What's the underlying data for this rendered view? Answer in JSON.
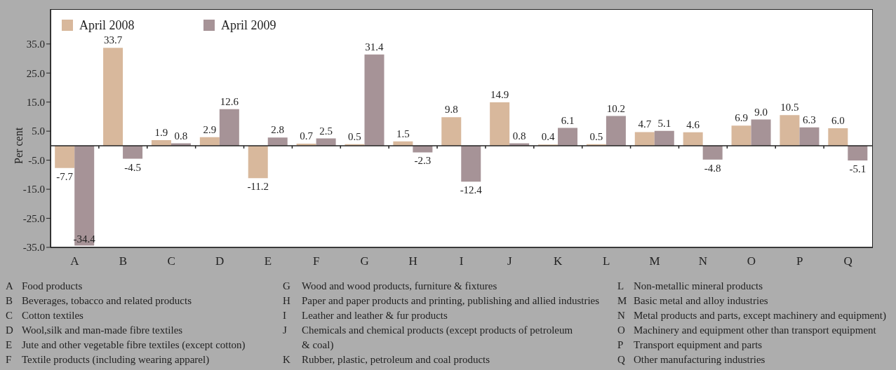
{
  "chart_data": {
    "type": "bar",
    "ylabel": "Per cent",
    "categories": [
      "A",
      "B",
      "C",
      "D",
      "E",
      "F",
      "G",
      "H",
      "I",
      "J",
      "K",
      "L",
      "M",
      "N",
      "O",
      "P",
      "Q"
    ],
    "series": [
      {
        "name": "April 2008",
        "color": "#d8b89c",
        "values": [
          -7.7,
          33.7,
          1.9,
          2.9,
          -11.2,
          0.7,
          0.5,
          1.5,
          9.8,
          14.9,
          0.4,
          0.5,
          4.7,
          4.6,
          6.9,
          10.5,
          6.0
        ],
        "value_labels": [
          "-7.7",
          "33.7",
          "1.9",
          "2.9",
          "-11.2",
          "0.7",
          "0.5",
          "1.5",
          "9.8",
          "14.9",
          "0.4",
          "0.5",
          "4.7",
          "4.6",
          "6.9",
          "10.5",
          "6.0"
        ]
      },
      {
        "name": "April 2009",
        "color": "#a69397",
        "values": [
          -34.4,
          -4.5,
          0.8,
          12.6,
          2.8,
          2.5,
          31.4,
          -2.3,
          -12.4,
          0.8,
          6.1,
          10.2,
          5.1,
          -4.8,
          9.0,
          6.3,
          -5.1
        ],
        "value_labels": [
          "-34.4",
          "-4.5",
          "0.8",
          "12.6",
          "2.8",
          "2.5",
          "31.4",
          "-2.3",
          "-12.4",
          "0.8",
          "6.1",
          "10.2",
          "5.1",
          "-4.8",
          "9.0",
          "6.3",
          "-5.1"
        ]
      }
    ],
    "ylim": [
      -35,
      47
    ],
    "yticks": [
      {
        "value": -35,
        "label": "-35.0"
      },
      {
        "value": -25,
        "label": "-25.0"
      },
      {
        "value": -15,
        "label": "-15.0"
      },
      {
        "value": -5,
        "label": "-5.0"
      },
      {
        "value": 5,
        "label": "5.0"
      },
      {
        "value": 15,
        "label": "15.0"
      },
      {
        "value": 25,
        "label": "25.0"
      },
      {
        "value": 35,
        "label": "35.0"
      }
    ],
    "legend": "top left",
    "ref_lines": [
      {
        "axis": "y",
        "value": 0,
        "color": "#222222"
      }
    ],
    "annotations": [
      "Food products",
      "Beverages, tobacco and related products",
      "Cotton textiles",
      "Wool,silk and man-made fibre textiles",
      "Jute and other vegetable fibre textiles (except cotton)",
      "Textile products (including wearing apparel)",
      "Wood and wood products, furniture & fixtures",
      "Paper and paper products and printing, publishing and allied industries",
      "Leather and leather & fur products",
      "Chemicals and chemical products (except products of petroleum\n& coal)",
      "Rubber, plastic, petroleum and coal products",
      "Non-metallic mineral products",
      "Basic metal and alloy industries",
      "Metal products and parts, except machinery and equipment)",
      "Machinery and equipment other than transport equipment",
      "Transport equipment and parts",
      "Other manufacturing industries"
    ]
  }
}
